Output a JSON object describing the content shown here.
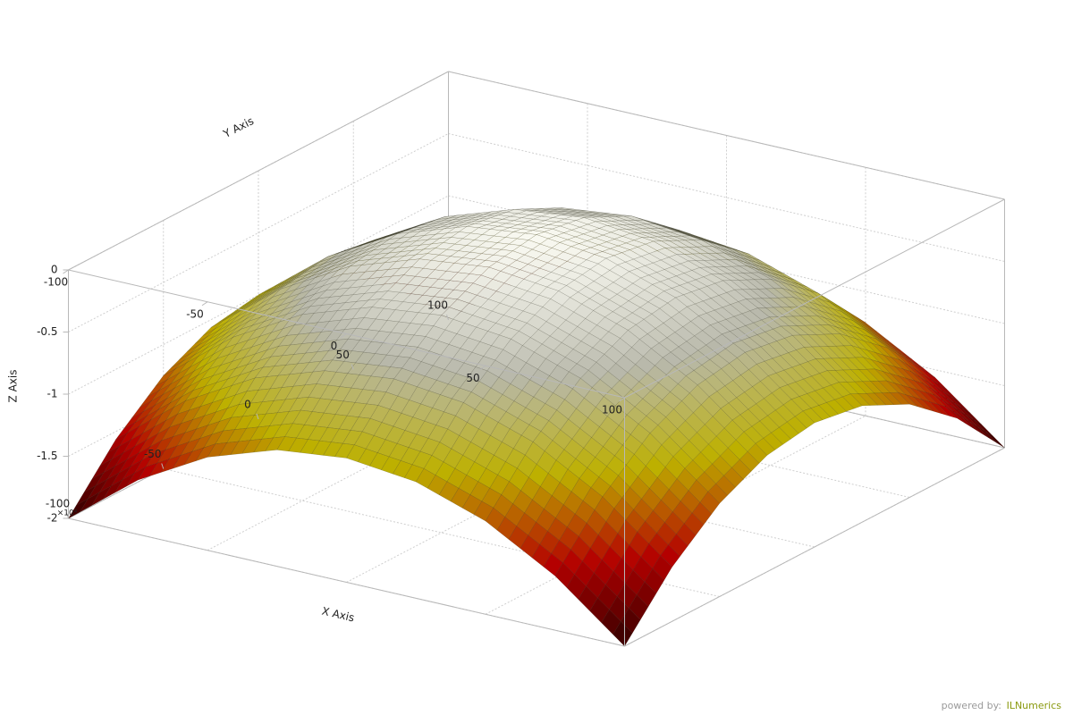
{
  "chart_data": {
    "type": "surface",
    "x_label": "X Axis",
    "y_label": "Y Axis",
    "z_label": "Z Axis",
    "z_multiplier": "×10⁴",
    "x": [
      -100,
      -75,
      -50,
      -25,
      0,
      25,
      50,
      75,
      100
    ],
    "y": [
      -100,
      -75,
      -50,
      -25,
      0,
      25,
      50,
      75,
      100
    ],
    "z": [
      [
        -20000,
        -15625,
        -12500,
        -10625,
        -10000,
        -10625,
        -12500,
        -15625,
        -20000
      ],
      [
        -15625,
        -11250,
        -8125,
        -6250,
        -5625,
        -6250,
        -8125,
        -11250,
        -15625
      ],
      [
        -12500,
        -8125,
        -5000,
        -3125,
        -2500,
        -3125,
        -5000,
        -8125,
        -12500
      ],
      [
        -10625,
        -6250,
        -3125,
        -1250,
        -625,
        -1250,
        -3125,
        -6250,
        -10625
      ],
      [
        -10000,
        -5625,
        -2500,
        -625,
        0,
        -625,
        -2500,
        -5625,
        -10000
      ],
      [
        -10625,
        -6250,
        -3125,
        -1250,
        -625,
        -1250,
        -3125,
        -6250,
        -10625
      ],
      [
        -12500,
        -8125,
        -5000,
        -3125,
        -2500,
        -3125,
        -5000,
        -8125,
        -12500
      ],
      [
        -15625,
        -11250,
        -8125,
        -6250,
        -5625,
        -6250,
        -8125,
        -11250,
        -15625
      ],
      [
        -20000,
        -15625,
        -12500,
        -10625,
        -10000,
        -10625,
        -12500,
        -15625,
        -20000
      ]
    ],
    "xlim": [
      -100,
      100
    ],
    "ylim": [
      -100,
      100
    ],
    "zlim": [
      -20000,
      0
    ],
    "xticks": [
      -100,
      -50,
      0,
      50,
      100
    ],
    "yticks": [
      -100,
      -50,
      0,
      50,
      100
    ],
    "zticks": [
      0,
      {
        "value": -5000,
        "label": "-0.5"
      },
      {
        "value": -10000,
        "label": "-1"
      },
      {
        "value": -15000,
        "label": "-1.5"
      },
      {
        "value": -20000,
        "label": "-2"
      }
    ],
    "colormap": [
      "#2e0000",
      "#b40000",
      "#bdb000",
      "#b8b8aa",
      "#fafaf2"
    ],
    "grid": true
  },
  "watermark": {
    "prefix": "powered by:",
    "brand": "ILNumerics"
  }
}
